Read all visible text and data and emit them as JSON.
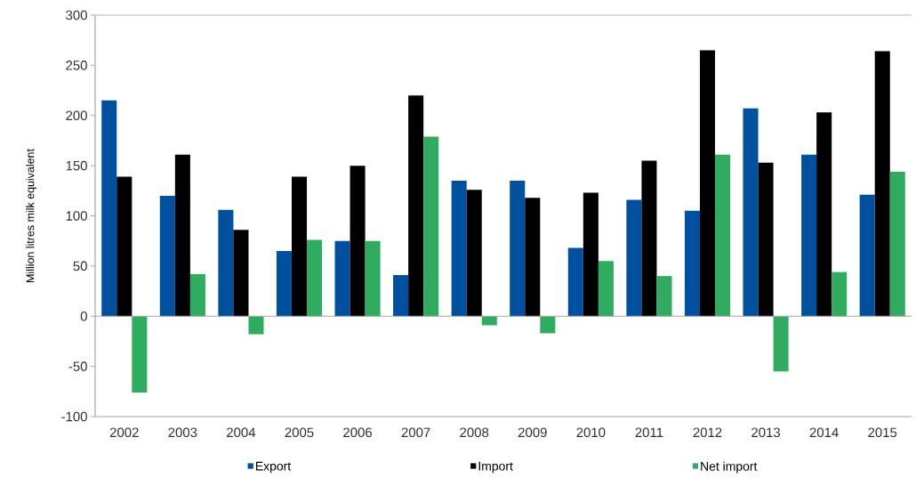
{
  "chart_data": {
    "type": "bar",
    "ylabel": "Million litres milk equivalent",
    "categories": [
      "2002",
      "2003",
      "2004",
      "2005",
      "2006",
      "2007",
      "2008",
      "2009",
      "2010",
      "2011",
      "2012",
      "2013",
      "2014",
      "2015"
    ],
    "series": [
      {
        "name": "Export",
        "color": "#0050a0",
        "values": [
          215,
          120,
          106,
          65,
          75,
          41,
          135,
          135,
          68,
          116,
          105,
          207,
          161,
          121
        ]
      },
      {
        "name": "Import",
        "color": "#000000",
        "values": [
          139,
          161,
          86,
          139,
          150,
          220,
          126,
          118,
          123,
          155,
          265,
          153,
          203,
          264
        ]
      },
      {
        "name": "Net import",
        "color": "#30ac60",
        "values": [
          -76,
          42,
          -18,
          76,
          75,
          179,
          -9,
          -17,
          55,
          40,
          161,
          -55,
          44,
          144
        ]
      }
    ],
    "ylim": [
      -100,
      300
    ],
    "yticks": [
      -100,
      -50,
      0,
      50,
      100,
      150,
      200,
      250,
      300
    ],
    "legend": "bottom"
  }
}
